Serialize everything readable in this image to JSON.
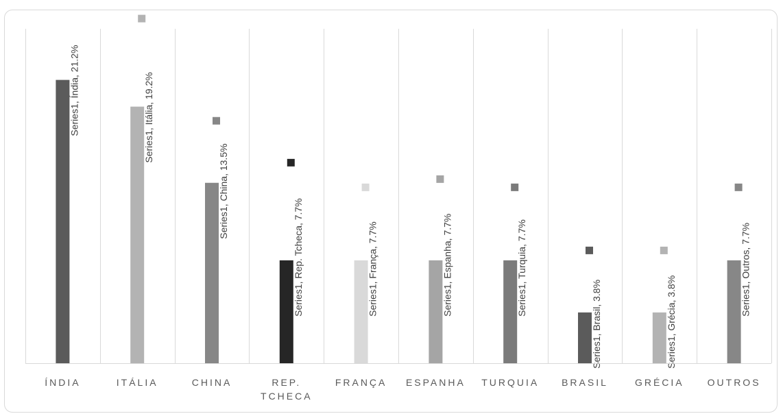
{
  "chart_data": {
    "type": "bar",
    "title": "",
    "xlabel": "",
    "ylabel": "",
    "ylim": [
      0,
      25
    ],
    "grid": "vertical",
    "legend": "none",
    "categories": [
      "ÍNDIA",
      "ITÁLIA",
      "CHINA",
      "REP. TCHECA",
      "FRANÇA",
      "ESPANHA",
      "TURQUIA",
      "BRASIL",
      "GRÉCIA",
      "OUTROS"
    ],
    "category_lines": [
      [
        "ÍNDIA"
      ],
      [
        "ITÁLIA"
      ],
      [
        "CHINA"
      ],
      [
        "REP.",
        "TCHECA"
      ],
      [
        "FRANÇA"
      ],
      [
        "ESPANHA"
      ],
      [
        "TURQUIA"
      ],
      [
        "BRASIL"
      ],
      [
        "GRÉCIA"
      ],
      [
        "OUTROS"
      ]
    ],
    "series": [
      {
        "name": "Series1",
        "values": [
          21.2,
          19.2,
          13.5,
          7.7,
          7.7,
          7.7,
          7.7,
          3.8,
          3.8,
          7.7
        ]
      }
    ],
    "data_labels": [
      "Series1, Índia, 21.2%",
      "Series1, Itália, 19.2%",
      "Series1, China, 13.5%",
      "Series1, Rep. Tcheca, 7.7%",
      "Series1, França, 7.7%",
      "Series1, Espanha, 7.7%",
      "Series1, Turquia, 7.7%",
      "Series1, Brasil, 3.8%",
      "Series1, Grécia, 3.8%",
      "Series1, Outros, 7.7%"
    ],
    "colors": [
      "#5b5b5b",
      "#b3b3b3",
      "#878787",
      "#262626",
      "#d9d9d9",
      "#a5a5a5",
      "#7b7b7b",
      "#5b5b5b",
      "#b3b3b3",
      "#878787"
    ]
  }
}
